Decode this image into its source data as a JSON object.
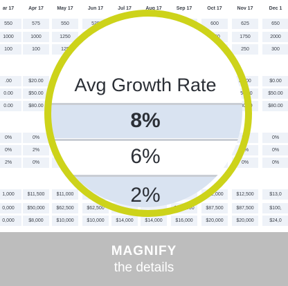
{
  "months": [
    "ar 17",
    "Apr 17",
    "May 17",
    "Jun 17",
    "Jul 17",
    "Aug 17",
    "Sep 17",
    "Oct 17",
    "Nov 17",
    "Dec 1"
  ],
  "rows": [
    [
      "550",
      "575",
      "550",
      "525",
      "525",
      "550",
      "575",
      "600",
      "625",
      "650"
    ],
    [
      "1000",
      "1000",
      "1250",
      "1250",
      "",
      "",
      "2000",
      "1750",
      "1750",
      "2000"
    ],
    [
      "100",
      "100",
      "125",
      "",
      "",
      "",
      "",
      "150",
      "250",
      "300"
    ],
    [
      "",
      "",
      "",
      "",
      "",
      "",
      "",
      "",
      "",
      ""
    ],
    [
      ".00",
      "$20.00",
      "",
      "",
      "",
      "",
      "",
      "$0.00",
      "$0.00",
      "$0.00"
    ],
    [
      "0.00",
      "$50.00",
      "",
      "",
      "",
      "",
      "",
      "$50.00",
      "$50.00",
      "$50.00"
    ],
    [
      "0.00",
      "$80.00",
      "",
      "",
      "",
      "",
      "",
      "$80.00",
      "$80.00",
      "$80.00"
    ],
    [
      "",
      "",
      "",
      "",
      "",
      "",
      "",
      "",
      "",
      ""
    ],
    [
      "0%",
      "0%",
      "0%",
      "",
      "",
      "",
      "",
      "",
      "1%",
      "0%"
    ],
    [
      "0%",
      "2%",
      "",
      "",
      "",
      "",
      "",
      "",
      "0%",
      "0%"
    ],
    [
      "2%",
      "0%",
      "",
      "",
      "",
      "",
      "",
      "",
      "0%",
      "0%"
    ],
    [
      "",
      "",
      "",
      "",
      "",
      "",
      "",
      "",
      "",
      ""
    ],
    [
      "1,000",
      "$11,500",
      "$11,000",
      "",
      "",
      "",
      "",
      "$12,000",
      "$12,500",
      "$13,0"
    ],
    [
      "0,000",
      "$50,000",
      "$62,500",
      "$62,500",
      "",
      "",
      "$100,000",
      "$87,500",
      "$87,500",
      "$100,"
    ],
    [
      "0,000",
      "$8,000",
      "$10,000",
      "$10,000",
      "$14,000",
      "$14,000",
      "$16,000",
      "$20,000",
      "$20,000",
      "$24,0"
    ]
  ],
  "magnifier": {
    "title": "Avg Growth Rate",
    "values": [
      "8%",
      "6%",
      "2%"
    ]
  },
  "banner": {
    "line1": "MAGNIFY",
    "line2": "the details"
  },
  "colors": {
    "ring": "#cdd31a",
    "cell": "#eef2f8",
    "highlight_row": "#d9e3f1",
    "banner": "#bdbdbd"
  }
}
